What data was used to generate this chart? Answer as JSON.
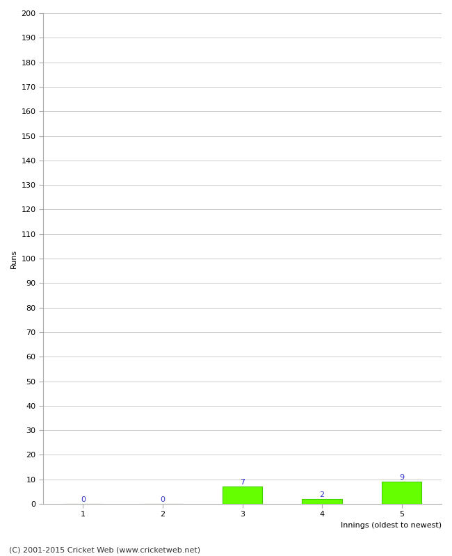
{
  "xlabel": "Innings (oldest to newest)",
  "ylabel": "Runs",
  "categories": [
    1,
    2,
    3,
    4,
    5
  ],
  "values": [
    0,
    0,
    7,
    2,
    9
  ],
  "bar_color": "#66ff00",
  "bar_edgecolor": "#44cc00",
  "value_labels": [
    "0",
    "0",
    "7",
    "2",
    "9"
  ],
  "value_label_color": "#3333cc",
  "ylim": [
    0,
    200
  ],
  "yticks": [
    0,
    10,
    20,
    30,
    40,
    50,
    60,
    70,
    80,
    90,
    100,
    110,
    120,
    130,
    140,
    150,
    160,
    170,
    180,
    190,
    200
  ],
  "background_color": "#ffffff",
  "grid_color": "#cccccc",
  "footer_text": "(C) 2001-2015 Cricket Web (www.cricketweb.net)",
  "axis_label_fontsize": 8,
  "tick_fontsize": 8,
  "value_label_fontsize": 8,
  "footer_fontsize": 8
}
